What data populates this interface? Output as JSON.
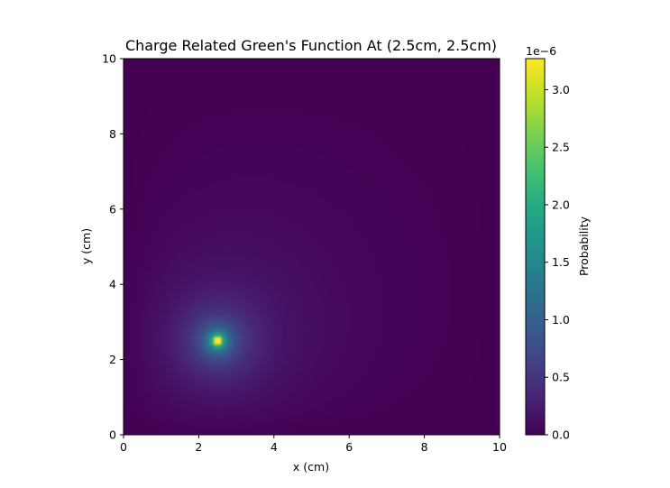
{
  "chart_data": {
    "type": "heatmap",
    "title": "Charge Related Green's Function At (2.5cm, 2.5cm)",
    "xlabel": "x (cm)",
    "ylabel": "y (cm)",
    "xlim": [
      0,
      10
    ],
    "ylim": [
      0,
      10
    ],
    "x_ticks": [
      "0",
      "2",
      "4",
      "6",
      "8",
      "10"
    ],
    "y_ticks": [
      "0",
      "2",
      "4",
      "6",
      "8",
      "10"
    ],
    "source_point": [
      2.5,
      2.5
    ],
    "peak_value": 3.27e-06,
    "colormap": "viridis",
    "colorbar": {
      "label": "Probability",
      "exponent_label": "1e−6",
      "range": [
        0,
        3.27
      ],
      "ticks": [
        "0.0",
        "0.5",
        "1.0",
        "1.5",
        "2.0",
        "2.5",
        "3.0"
      ]
    },
    "grid": false
  }
}
